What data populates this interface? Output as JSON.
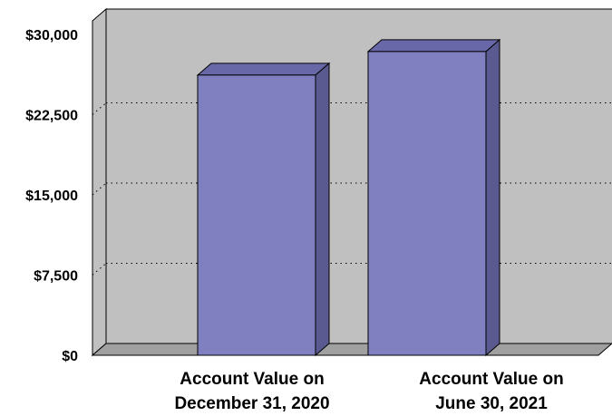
{
  "chart_data": {
    "type": "bar",
    "categories": [
      [
        "Account Value on",
        "December 31, 2020"
      ],
      [
        "Account Value on",
        "June 30, 2021"
      ]
    ],
    "values": [
      26200,
      28400
    ],
    "ylim": [
      0,
      30000
    ],
    "yticks": [
      0,
      7500,
      15000,
      22500,
      30000
    ],
    "ytick_labels": [
      "$0",
      "$7,500",
      "$15,000",
      "$22,500",
      "$30,000"
    ],
    "grid": "dotted horizontal",
    "colors": {
      "bar_front": "#8080C0",
      "bar_top": "#6868A8",
      "bar_side": "#5A5A90",
      "wall": "#C0C0C0",
      "floor": "#A0A0A0",
      "outline": "#000000"
    }
  }
}
